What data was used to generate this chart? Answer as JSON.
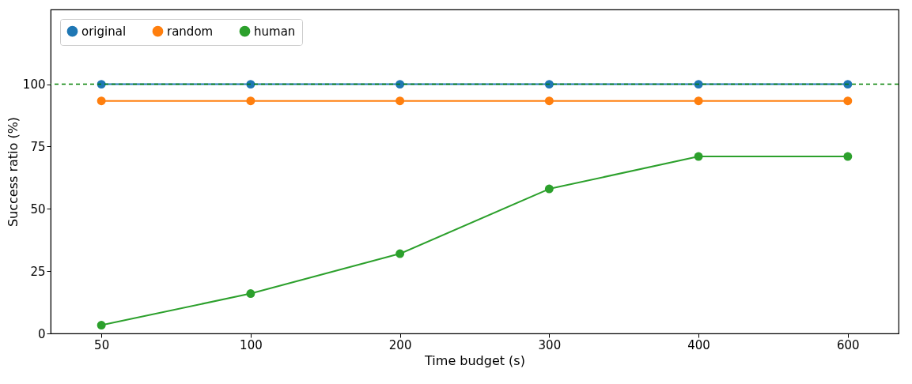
{
  "chart_data": {
    "type": "line",
    "xlabel": "Time budget (s)",
    "ylabel": "Success ratio (%)",
    "categories": [
      "50",
      "100",
      "200",
      "300",
      "400",
      "600"
    ],
    "series": [
      {
        "name": "original",
        "color": "#1f77b4",
        "values": [
          100,
          100,
          100,
          100,
          100,
          100
        ]
      },
      {
        "name": "random",
        "color": "#ff7f0e",
        "values": [
          93.3,
          93.3,
          93.3,
          93.3,
          93.3,
          93.3
        ]
      },
      {
        "name": "human",
        "color": "#2ca02c",
        "values": [
          3.3,
          16,
          32,
          58,
          71,
          71
        ]
      }
    ],
    "ylim": [
      0,
      130
    ],
    "yticks": [
      0,
      25,
      50,
      75,
      100
    ],
    "ref_lines": [
      {
        "axis": "y",
        "value": 100,
        "color": "#008000",
        "line_style": "dashed"
      }
    ],
    "grid": false,
    "legend": "top left",
    "marker": "circle",
    "line_style": "solid"
  }
}
